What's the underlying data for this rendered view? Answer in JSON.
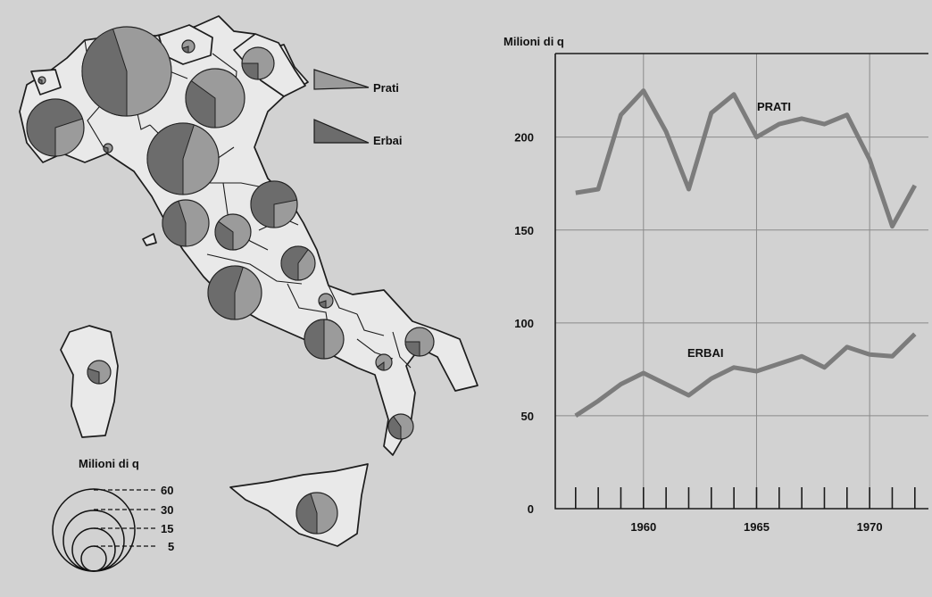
{
  "colors": {
    "background": "#d2d2d2",
    "prati": "#9b9b9b",
    "erbai": "#6c6c6c",
    "line": "#7c7c7c"
  },
  "map": {
    "legend_prati": "Prati",
    "legend_erbai": "Erbai",
    "scale_title": "Milioni di q",
    "scale_values": [
      "60",
      "30",
      "15",
      "5"
    ]
  },
  "chart_data": {
    "type": "line",
    "ylabel": "Milioni di q",
    "x": [
      1957,
      1958,
      1959,
      1960,
      1961,
      1962,
      1963,
      1964,
      1965,
      1966,
      1967,
      1968,
      1969,
      1970,
      1971,
      1972
    ],
    "x_ticks": [
      "1960",
      "1965",
      "1970"
    ],
    "y_ticks": [
      "0",
      "50",
      "100",
      "150",
      "200"
    ],
    "ylim": [
      0,
      245
    ],
    "grid": true,
    "series": [
      {
        "name": "PRATI",
        "values": [
          170,
          172,
          212,
          225,
          203,
          172,
          213,
          223,
          200,
          207,
          210,
          207,
          212,
          188,
          152,
          174
        ]
      },
      {
        "name": "ERBAI",
        "values": [
          50,
          58,
          67,
          73,
          67,
          61,
          70,
          76,
          74,
          78,
          82,
          76,
          87,
          83,
          82,
          94
        ]
      }
    ]
  }
}
